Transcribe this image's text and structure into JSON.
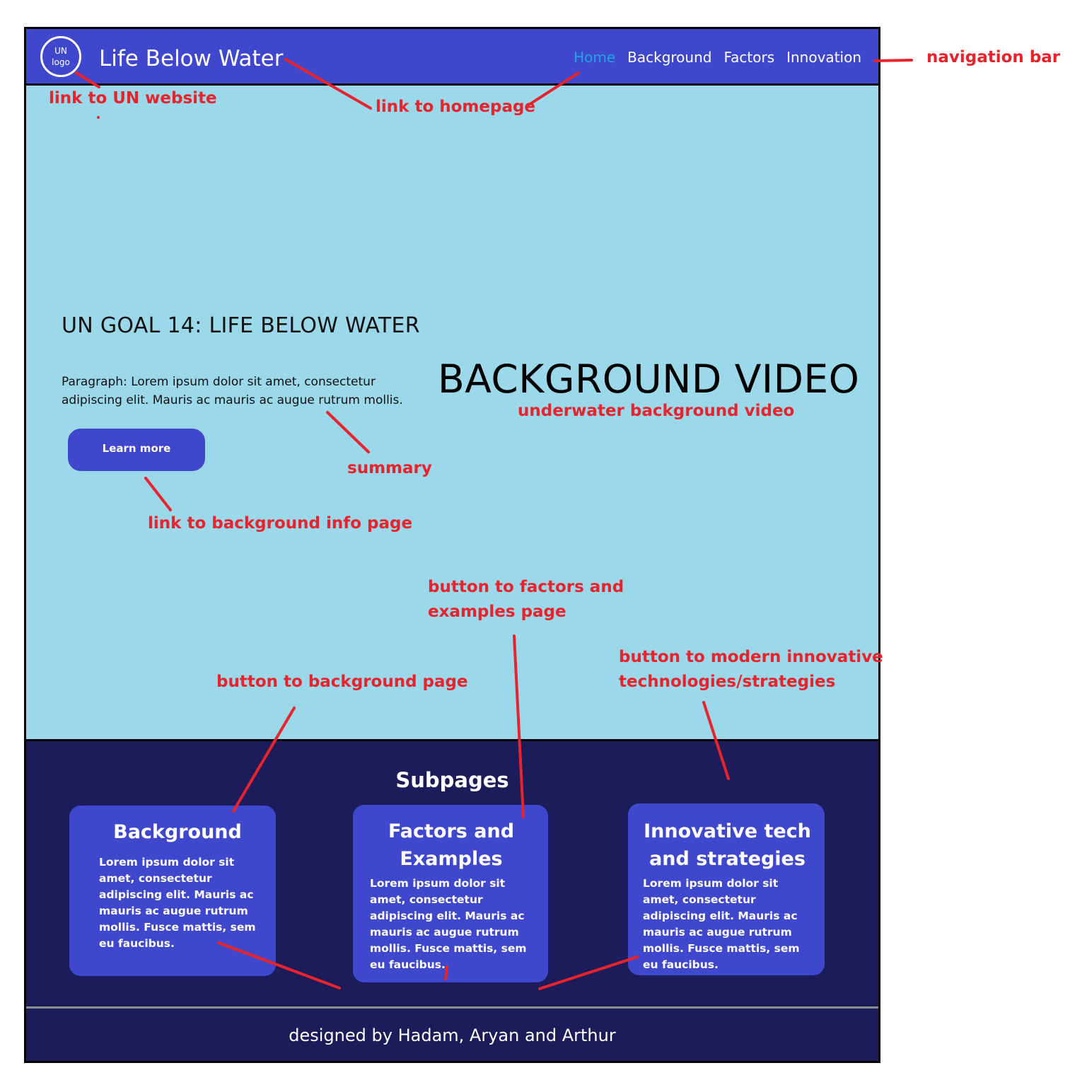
{
  "navbar": {
    "logo_text": "UN logo",
    "site_title": "Life Below Water",
    "links": [
      "Home",
      "Background",
      "Factors",
      "Innovation"
    ]
  },
  "hero": {
    "title": "UN GOAL 14: LIFE BELOW WATER",
    "paragraph": "Paragraph: Lorem ipsum dolor sit amet, consectetur adipiscing elit. Mauris ac mauris ac augue rutrum mollis.",
    "button_label": "Learn more",
    "background_video_label": "BACKGROUND VIDEO"
  },
  "subpages": {
    "heading": "Subpages",
    "cards": [
      {
        "title": "Background",
        "text": "Lorem ipsum dolor sit amet, consectetur adipiscing elit. Mauris ac mauris ac augue rutrum mollis. Fusce mattis, sem eu faucibus."
      },
      {
        "title": "Factors and Examples",
        "text": "Lorem ipsum dolor sit amet, consectetur adipiscing elit. Mauris ac mauris ac augue rutrum mollis. Fusce mattis, sem eu faucibus."
      },
      {
        "title": "Innovative tech and strategies",
        "text": "Lorem ipsum dolor sit amet, consectetur adipiscing elit. Mauris ac mauris ac augue rutrum mollis. Fusce mattis, sem eu faucibus."
      }
    ]
  },
  "footer": {
    "text": "designed by Hadam, Aryan and Arthur"
  },
  "annotations": {
    "navigation_bar": "navigation bar",
    "un_website": "link to UN website",
    "homepage": "link to homepage",
    "background_video": "underwater background video",
    "summary": "summary",
    "background_info": "link to background info page",
    "factors_button_line1": "button to factors and",
    "factors_button_line2": "examples page",
    "innovative_button_line1": "button to modern innovative",
    "innovative_button_line2": "technologies/strategies",
    "background_button": "button to background page"
  },
  "colors": {
    "nav_blue": "#3f48cc",
    "hero_bg": "#9ad8ea",
    "dark_navy": "#1b1c59",
    "active_link": "#1fa2e6",
    "annotation_red": "#e8232b"
  }
}
